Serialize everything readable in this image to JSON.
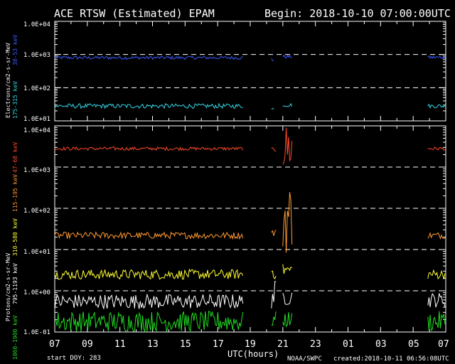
{
  "header": {
    "title": "ACE RTSW (Estimated) EPAM",
    "begin": "Begin: 2018-10-10 07:00:00UTC"
  },
  "footer": {
    "start_doy": "start DOY: 283",
    "xlabel": "UTC(hours)",
    "source": "NOAA/SWPC",
    "created": "created:2018-10-11 06:56:08UTC"
  },
  "colors": {
    "background": "#000000",
    "axes": "#ffffff",
    "e_38_53": "#3a5bff",
    "e_175_315": "#33d6e6",
    "p_47_68": "#ff4a2a",
    "p_115_195": "#ff9a33",
    "p_310_580": "#ffff33",
    "p_795_1193": "#ffffff",
    "p_1060_1900": "#22dd22"
  },
  "chart_data": [
    {
      "type": "line",
      "title": "ACE RTSW (Estimated) EPAM",
      "xlabel": "UTC(hours)",
      "ylabel": "Electrons/cm2-s-sr-MeV",
      "yscale": "log",
      "ylim": [
        10,
        10000
      ],
      "ytick_labels": [
        "1.0E+01",
        "1.0E+02",
        "1.0E+03",
        "1.0E+04"
      ],
      "xlim": [
        7,
        31
      ],
      "xtick_labels": [
        "07",
        "09",
        "11",
        "13",
        "15",
        "17",
        "19",
        "21",
        "23",
        "01",
        "03",
        "05",
        "07"
      ],
      "dashed_reference_lines": [
        1000,
        100
      ],
      "series": [
        {
          "name": "38-53 keV",
          "color_key": "e_38_53",
          "segments": [
            {
              "x": [
                7.0,
                18.6
              ],
              "base": 800,
              "jitter": 0.05
            },
            {
              "x": [
                20.3,
                20.5
              ],
              "base": 700,
              "jitter": 0.08
            },
            {
              "x": [
                21.0,
                21.6
              ],
              "base": 860,
              "jitter": 0.05
            },
            {
              "x": [
                29.9,
                31.0
              ],
              "base": 820,
              "jitter": 0.05
            }
          ]
        },
        {
          "name": "175-315 keV",
          "color_key": "e_175_315",
          "segments": [
            {
              "x": [
                7.0,
                18.6
              ],
              "base": 28,
              "jitter": 0.07
            },
            {
              "x": [
                20.3,
                20.5
              ],
              "base": 22,
              "jitter": 0.12
            },
            {
              "x": [
                21.0,
                21.6
              ],
              "base": 30,
              "jitter": 0.06
            },
            {
              "x": [
                29.9,
                31.0
              ],
              "base": 28,
              "jitter": 0.06
            }
          ]
        }
      ]
    },
    {
      "type": "line",
      "ylabel": "Protons/cm2-s-sr-MeV",
      "yscale": "log",
      "ylim": [
        0.1,
        10000
      ],
      "ytick_labels": [
        "1.0E-01",
        "1.0E+00",
        "1.0E+01",
        "1.0E+02",
        "1.0E+03",
        "1.0E+04"
      ],
      "xlim": [
        7,
        31
      ],
      "dashed_reference_lines": [
        1000,
        100,
        10,
        1
      ],
      "series": [
        {
          "name": "47-68 keV",
          "color_key": "p_47_68",
          "segments": [
            {
              "x": [
                7.0,
                18.6
              ],
              "base": 2800,
              "jitter": 0.04
            },
            {
              "x": [
                20.3,
                20.6
              ],
              "base": 2600,
              "jitter": 0.05
            },
            {
              "x": [
                21.0,
                21.6
              ],
              "base": 3000,
              "jitter": 0.6
            },
            {
              "x": [
                29.9,
                31.0
              ],
              "base": 2800,
              "jitter": 0.04
            }
          ]
        },
        {
          "name": "115-195 keV",
          "color_key": "p_115_195",
          "segments": [
            {
              "x": [
                7.0,
                18.6
              ],
              "base": 22,
              "jitter": 0.08
            },
            {
              "x": [
                20.3,
                20.6
              ],
              "base": 25,
              "jitter": 0.1
            },
            {
              "x": [
                21.0,
                21.6
              ],
              "base": 60,
              "jitter": 0.9
            },
            {
              "x": [
                29.9,
                31.0
              ],
              "base": 22,
              "jitter": 0.08
            }
          ]
        },
        {
          "name": "310-580 keV",
          "color_key": "p_310_580",
          "segments": [
            {
              "x": [
                7.0,
                18.6
              ],
              "base": 2.5,
              "jitter": 0.12
            },
            {
              "x": [
                20.3,
                20.6
              ],
              "base": 3.0,
              "jitter": 0.2
            },
            {
              "x": [
                21.0,
                21.6
              ],
              "base": 3.2,
              "jitter": 0.15
            },
            {
              "x": [
                29.9,
                31.0
              ],
              "base": 2.5,
              "jitter": 0.12
            }
          ]
        },
        {
          "name": "795-1193 keV",
          "color_key": "p_795_1193",
          "segments": [
            {
              "x": [
                7.0,
                18.6
              ],
              "base": 0.55,
              "jitter": 0.18
            },
            {
              "x": [
                20.3,
                20.6
              ],
              "base": 0.8,
              "jitter": 0.35
            },
            {
              "x": [
                21.0,
                21.6
              ],
              "base": 0.7,
              "jitter": 0.2
            },
            {
              "x": [
                29.9,
                31.0
              ],
              "base": 0.6,
              "jitter": 0.18
            }
          ]
        },
        {
          "name": "1060-1900 keV",
          "color_key": "p_1060_1900",
          "segments": [
            {
              "x": [
                7.0,
                18.6
              ],
              "base": 0.18,
              "jitter": 0.25
            },
            {
              "x": [
                20.3,
                20.6
              ],
              "base": 0.2,
              "jitter": 0.2
            },
            {
              "x": [
                21.0,
                21.6
              ],
              "base": 0.2,
              "jitter": 0.2
            },
            {
              "x": [
                29.9,
                31.0
              ],
              "base": 0.18,
              "jitter": 0.25
            }
          ]
        }
      ]
    }
  ]
}
